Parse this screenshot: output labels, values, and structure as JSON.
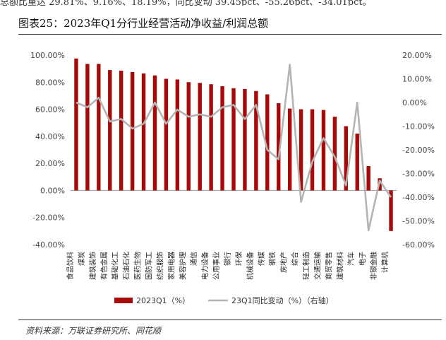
{
  "header_line": "总额比重达 29.81%、9.16%、18.19%，同比变动 39.45pct、-55.26pct、-34.01pct。",
  "title": "图表25：2023年Q1分行业经营活动净收益/利润总额",
  "source": "资料来源：万联证券研究所、同花顺",
  "colors": {
    "bar": "#a80a0a",
    "line": "#b4b4b4"
  },
  "chart_data": {
    "type": "bar",
    "categories": [
      "食品饮料",
      "煤炭",
      "建筑装饰",
      "有色金属",
      "基础化工",
      "石油石化",
      "医药生物",
      "国防军工",
      "纺织服饰",
      "家用电器",
      "美容护理",
      "通信",
      "电力设备",
      "公用事业",
      "银行",
      "环保",
      "机械设备",
      "传媒",
      "钢铁",
      "房地产",
      "综合",
      "轻工制造",
      "交通运输",
      "商贸零售",
      "建筑材料",
      "汽车",
      "电子",
      "非银金融",
      "计算机"
    ],
    "series": [
      {
        "name": "2023Q1（%）",
        "axis": "left",
        "type": "bar",
        "values": [
          97.5,
          93.5,
          93.5,
          89,
          88.5,
          87.5,
          86.5,
          85,
          82.5,
          82,
          80,
          79.5,
          78.5,
          77,
          75.5,
          75,
          73.5,
          71,
          64.5,
          60.5,
          60,
          60,
          59.5,
          54.5,
          47.5,
          42,
          18,
          9,
          -30
        ]
      },
      {
        "name": "23Q1同比变动（%）（右轴）",
        "axis": "right",
        "type": "line",
        "values": [
          0,
          -2,
          2,
          -8,
          -7,
          -11,
          -9,
          0,
          -9,
          -3,
          -6,
          -5,
          -6,
          -2,
          -1,
          -7,
          -1,
          -20,
          -24,
          16,
          -42,
          -25,
          -15,
          -23,
          -35,
          0,
          -54,
          -33,
          -40
        ]
      }
    ],
    "y_left": {
      "min": -40,
      "max": 100,
      "ticks": [
        "100.00%",
        "80.00%",
        "60.00%",
        "40.00%",
        "20.00%",
        "0.00%",
        "-20.00%",
        "-40.00%"
      ]
    },
    "y_right": {
      "min": -60,
      "max": 20,
      "ticks": [
        "20.00%",
        "10.00%",
        "0.00%",
        "-10.00%",
        "-20.00%",
        "-30.00%",
        "-40.00%",
        "-50.00%",
        "-60.00%"
      ]
    },
    "legend": [
      "2023Q1（%）",
      "23Q1同比变动（%）（右轴）"
    ],
    "legend_position": "bottom",
    "grid": false
  }
}
